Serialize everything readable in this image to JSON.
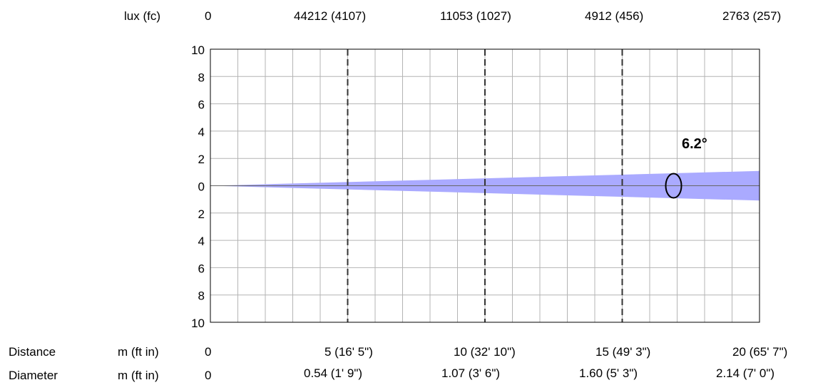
{
  "chart_data": {
    "type": "area",
    "title": "",
    "beam_angle_label": "6.2°",
    "beam_angle_deg": 6.2,
    "distance_range_m": [
      0,
      20
    ],
    "y_range": [
      -10,
      10
    ],
    "y_tick_labels": [
      "10",
      "8",
      "6",
      "4",
      "2",
      "0",
      "2",
      "4",
      "6",
      "8",
      "10"
    ],
    "grid": true,
    "beam_color": "#aaaaff",
    "marker_distance_m": 15,
    "marker_distances_m": [
      5,
      10,
      15
    ],
    "lux_row": {
      "label": "lux (fc)",
      "values": [
        "0",
        "44212 (4107)",
        "11053 (1027)",
        "4912 (456)",
        "2763 (257)"
      ]
    },
    "distance_row": {
      "label": "Distance",
      "unit": "m (ft in)",
      "values": [
        "0",
        "5 (16' 5\")",
        "10 (32' 10\")",
        "15 (49' 3\")",
        "20 (65' 7\")"
      ]
    },
    "diameter_row": {
      "label": "Diameter",
      "unit": "m (ft in)",
      "values": [
        "0",
        "0.54 (1' 9\")",
        "1.07 (3' 6\")",
        "1.60 (5' 3\")",
        "2.14 (7' 0\")"
      ]
    }
  }
}
